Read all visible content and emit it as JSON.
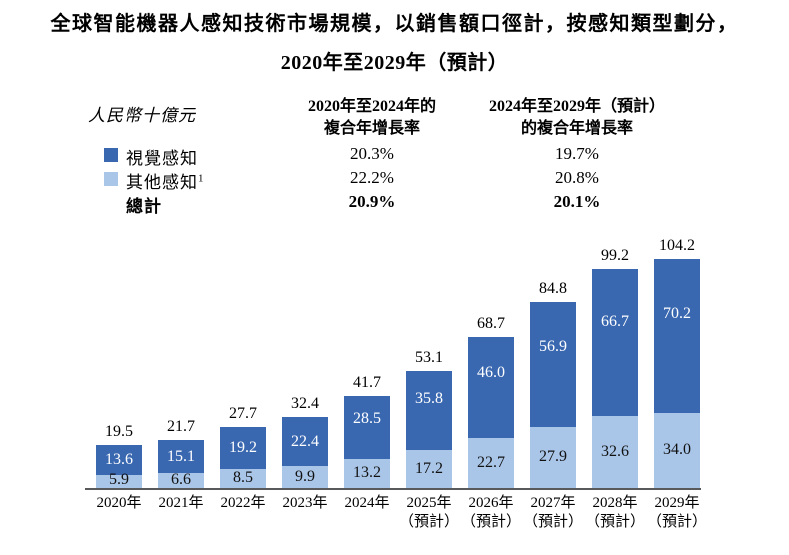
{
  "title": {
    "line1": "全球智能機器人感知技術市場規模，以銷售額口徑計，按感知類型劃分，",
    "line2": "2020年至2029年（預計）"
  },
  "unit_label": "人民幣十億元",
  "growth_table": {
    "col1_header_line1": "2020年至2024年的",
    "col1_header_line2": "複合年增長率",
    "col2_header_line1": "2024年至2029年（預計）",
    "col2_header_line2": "的複合年增長率",
    "rows": [
      {
        "label": "視覺感知",
        "superscript": "",
        "col1": "20.3%",
        "col2": "19.7%",
        "bold": false
      },
      {
        "label": "其他感知",
        "superscript": "1",
        "col1": "22.2%",
        "col2": "20.8%",
        "bold": false
      },
      {
        "label": "總計",
        "superscript": "",
        "col1": "20.9%",
        "col2": "20.1%",
        "bold": true
      }
    ]
  },
  "colors": {
    "visual_perception": "#3a68b0",
    "other_perception": "#a9c6e8",
    "axis_line": "#58595b",
    "text": "#000000"
  },
  "chart_data": {
    "type": "bar",
    "stacked": true,
    "title": "全球智能機器人感知技術市場規模，以銷售額口徑計，按感知類型劃分，2020年至2029年（預計）",
    "ylabel": "人民幣十億元",
    "xlabel": "",
    "ylim": [
      0,
      110
    ],
    "grid": false,
    "legend_position": "top-left",
    "categories": [
      "2020年",
      "2021年",
      "2022年",
      "2023年",
      "2024年",
      "2025年",
      "2026年",
      "2027年",
      "2028年",
      "2029年"
    ],
    "category_sublabels": [
      "",
      "",
      "",
      "",
      "",
      "（預計）",
      "（預計）",
      "（預計）",
      "（預計）",
      "（預計）"
    ],
    "series": [
      {
        "name": "視覺感知",
        "stack_position": "top",
        "color": "#3a68b0",
        "label_color": "#ffffff",
        "values": [
          13.6,
          15.1,
          19.2,
          22.4,
          28.5,
          35.8,
          46.0,
          56.9,
          66.7,
          70.2
        ]
      },
      {
        "name": "其他感知",
        "stack_position": "bottom",
        "color": "#a9c6e8",
        "label_color": "#111111",
        "values": [
          5.9,
          6.6,
          8.5,
          9.9,
          13.2,
          17.2,
          22.7,
          27.9,
          32.6,
          34.0
        ]
      }
    ],
    "totals": [
      19.5,
      21.7,
      27.7,
      32.4,
      41.7,
      53.1,
      68.7,
      84.8,
      99.2,
      104.2
    ],
    "cagr_2020_2024": {
      "視覺感知": "20.3%",
      "其他感知": "22.2%",
      "總計": "20.9%"
    },
    "cagr_2024_2029": {
      "視覺感知": "19.7%",
      "其他感知": "20.8%",
      "總計": "20.1%"
    }
  }
}
